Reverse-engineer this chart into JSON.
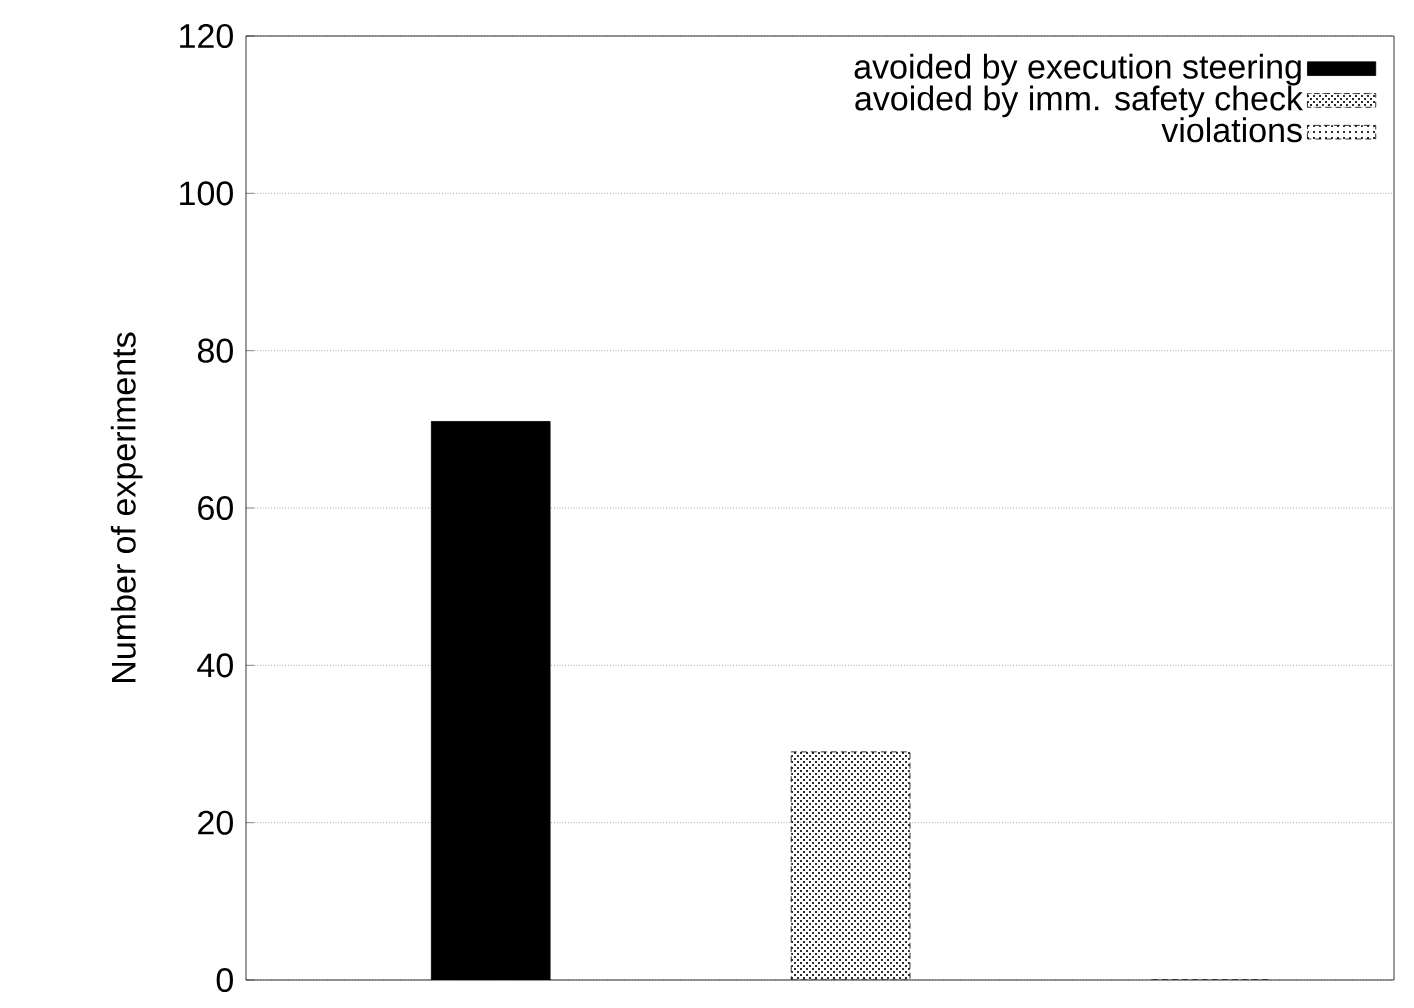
{
  "chart_data": {
    "type": "bar",
    "ylabel": "Number of experiments",
    "categories": [
      null,
      null,
      null
    ],
    "series": [
      {
        "name": "avoided by execution steering",
        "color": "#000000",
        "values": [
          71,
          null,
          null
        ]
      },
      {
        "name": "avoided by imm. safety check",
        "color": "#000000",
        "values": [
          null,
          29,
          null
        ]
      },
      {
        "name": "violations",
        "color": "#000000",
        "values": [
          null,
          null,
          0
        ]
      }
    ],
    "ylim": [
      0,
      120
    ],
    "yticks": [
      0,
      20,
      40,
      60,
      80,
      100,
      120
    ],
    "grid": "y",
    "legend": "top right"
  }
}
